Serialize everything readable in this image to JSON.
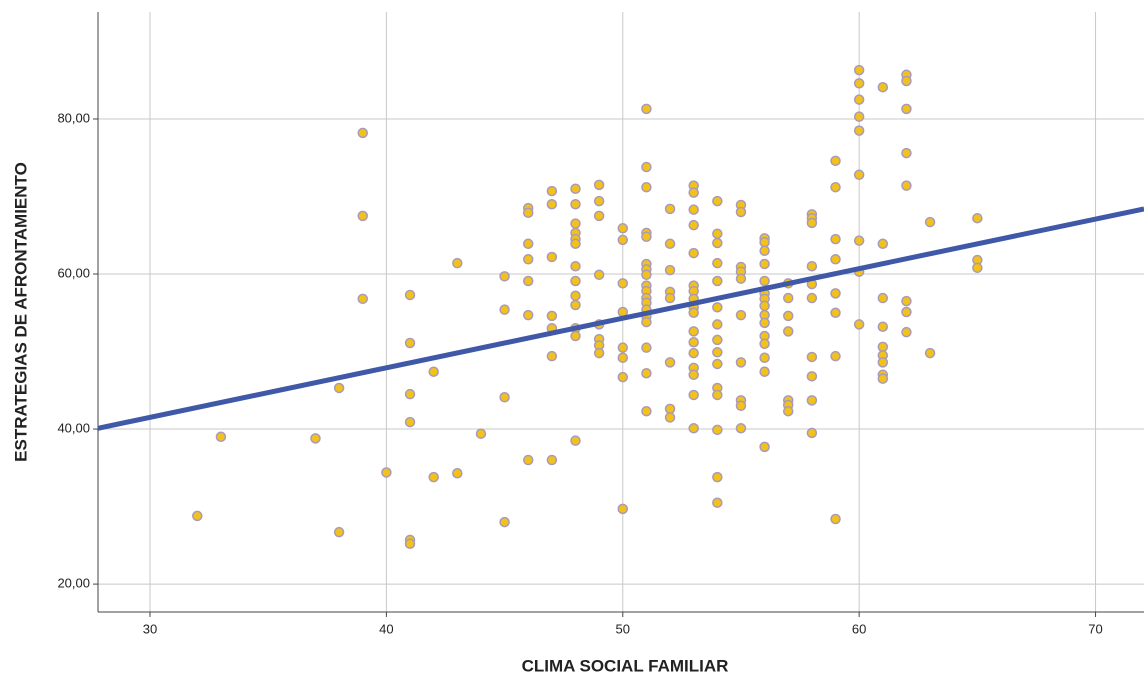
{
  "chart_data": {
    "type": "scatter",
    "x_label": "CLIMA SOCIAL FAMILIAR",
    "y_label": "ESTRATEGIAS DE AFRONTAMIENTO",
    "xlim": [
      27.8,
      72.05
    ],
    "ylim": [
      16.4,
      93.8
    ],
    "xticks": [
      30,
      40,
      50,
      60,
      70
    ],
    "yticks": [
      {
        "value": 20,
        "label": "20,00"
      },
      {
        "value": 40,
        "label": "40,00"
      },
      {
        "value": 60,
        "label": "60,00"
      },
      {
        "value": 80,
        "label": "80,00"
      }
    ],
    "grid": true,
    "point_color": "#f2c21b",
    "point_edge_color": "#a99ab8",
    "x": [
      32,
      33,
      37,
      38,
      38,
      39,
      39,
      39,
      40,
      41,
      41,
      41,
      41,
      41,
      41,
      42,
      42,
      43,
      43,
      44,
      45,
      45,
      45,
      45,
      46,
      46,
      46,
      46,
      46,
      46,
      46,
      47,
      47,
      47,
      47,
      47,
      47,
      47,
      48,
      48,
      48,
      48,
      48,
      48,
      48,
      48,
      48,
      48,
      48,
      48,
      48,
      49,
      49,
      49,
      49,
      49,
      49,
      49,
      49,
      50,
      50,
      50,
      50,
      50,
      50,
      50,
      50,
      51,
      51,
      51,
      51,
      51,
      51,
      51,
      51,
      51,
      51,
      51,
      51,
      51,
      51,
      51,
      51,
      51,
      51,
      52,
      52,
      52,
      52,
      52,
      52,
      52,
      52,
      53,
      53,
      53,
      53,
      53,
      53,
      53,
      53,
      53,
      53,
      53,
      53,
      53,
      53,
      53,
      53,
      53,
      54,
      54,
      54,
      54,
      54,
      54,
      54,
      54,
      54,
      54,
      54,
      54,
      54,
      54,
      54,
      55,
      55,
      55,
      55,
      55,
      55,
      55,
      55,
      55,
      55,
      56,
      56,
      56,
      56,
      56,
      56,
      56,
      56,
      56,
      56,
      56,
      56,
      56,
      56,
      56,
      57,
      57,
      57,
      57,
      57,
      57,
      57,
      58,
      58,
      58,
      58,
      58,
      58,
      58,
      58,
      58,
      58,
      59,
      59,
      59,
      59,
      59,
      59,
      59,
      59,
      60,
      60,
      60,
      60,
      60,
      60,
      60,
      60,
      60,
      61,
      61,
      61,
      61,
      61,
      61,
      61,
      61,
      61,
      62,
      62,
      62,
      62,
      62,
      62,
      62,
      62,
      63,
      63,
      65,
      65,
      65
    ],
    "y": [
      28.8,
      39.0,
      38.8,
      45.3,
      26.7,
      78.2,
      67.5,
      56.8,
      34.4,
      57.3,
      51.1,
      44.5,
      40.9,
      25.7,
      25.2,
      47.4,
      33.8,
      61.4,
      34.3,
      39.4,
      59.7,
      55.4,
      44.1,
      28.0,
      68.5,
      67.9,
      63.9,
      61.9,
      59.1,
      54.7,
      36.0,
      70.7,
      69.0,
      62.2,
      54.6,
      53.0,
      49.4,
      36.0,
      71.0,
      69.0,
      66.5,
      65.3,
      64.5,
      63.9,
      61.0,
      59.1,
      57.2,
      56.0,
      53.0,
      52.0,
      38.5,
      71.5,
      69.4,
      67.5,
      59.9,
      53.5,
      51.6,
      50.8,
      49.8,
      65.9,
      64.4,
      58.8,
      55.1,
      50.5,
      49.2,
      46.7,
      29.7,
      81.3,
      73.8,
      71.2,
      65.3,
      64.8,
      61.3,
      60.6,
      59.9,
      58.5,
      57.8,
      56.9,
      56.3,
      55.4,
      54.5,
      53.8,
      50.5,
      47.2,
      42.3,
      68.4,
      63.9,
      60.5,
      57.7,
      56.9,
      48.6,
      42.6,
      41.5,
      71.4,
      70.5,
      68.3,
      66.3,
      62.7,
      58.5,
      57.8,
      56.8,
      55.7,
      55.0,
      52.6,
      51.2,
      49.8,
      47.9,
      47.0,
      44.4,
      40.1,
      69.4,
      65.2,
      64.0,
      61.4,
      59.1,
      55.7,
      53.5,
      51.5,
      49.9,
      48.4,
      45.3,
      44.4,
      39.9,
      33.8,
      30.5,
      68.9,
      68.0,
      60.9,
      60.3,
      59.4,
      54.7,
      48.6,
      43.7,
      43.0,
      40.1,
      64.6,
      64.1,
      63.0,
      61.3,
      59.1,
      57.5,
      56.8,
      55.9,
      54.7,
      53.7,
      52.0,
      51.0,
      49.2,
      47.4,
      37.7,
      58.8,
      56.9,
      54.6,
      52.6,
      43.7,
      43.1,
      42.3,
      67.7,
      67.2,
      66.6,
      61.0,
      58.7,
      56.9,
      49.3,
      46.8,
      43.7,
      39.5,
      74.6,
      71.2,
      64.5,
      61.9,
      57.5,
      55.0,
      49.4,
      28.4,
      86.3,
      84.6,
      82.5,
      80.3,
      78.5,
      72.8,
      64.3,
      60.3,
      53.5,
      84.1,
      63.9,
      56.9,
      53.2,
      50.6,
      49.5,
      48.6,
      47.0,
      46.5,
      85.7,
      84.9,
      81.3,
      75.6,
      71.4,
      56.5,
      55.1,
      52.5,
      66.7,
      49.8,
      67.2,
      61.8,
      60.8
    ],
    "fit_line": {
      "color": "#3f58a8",
      "x": [
        27.8,
        72.05
      ],
      "y": [
        40.1,
        68.4
      ]
    }
  }
}
